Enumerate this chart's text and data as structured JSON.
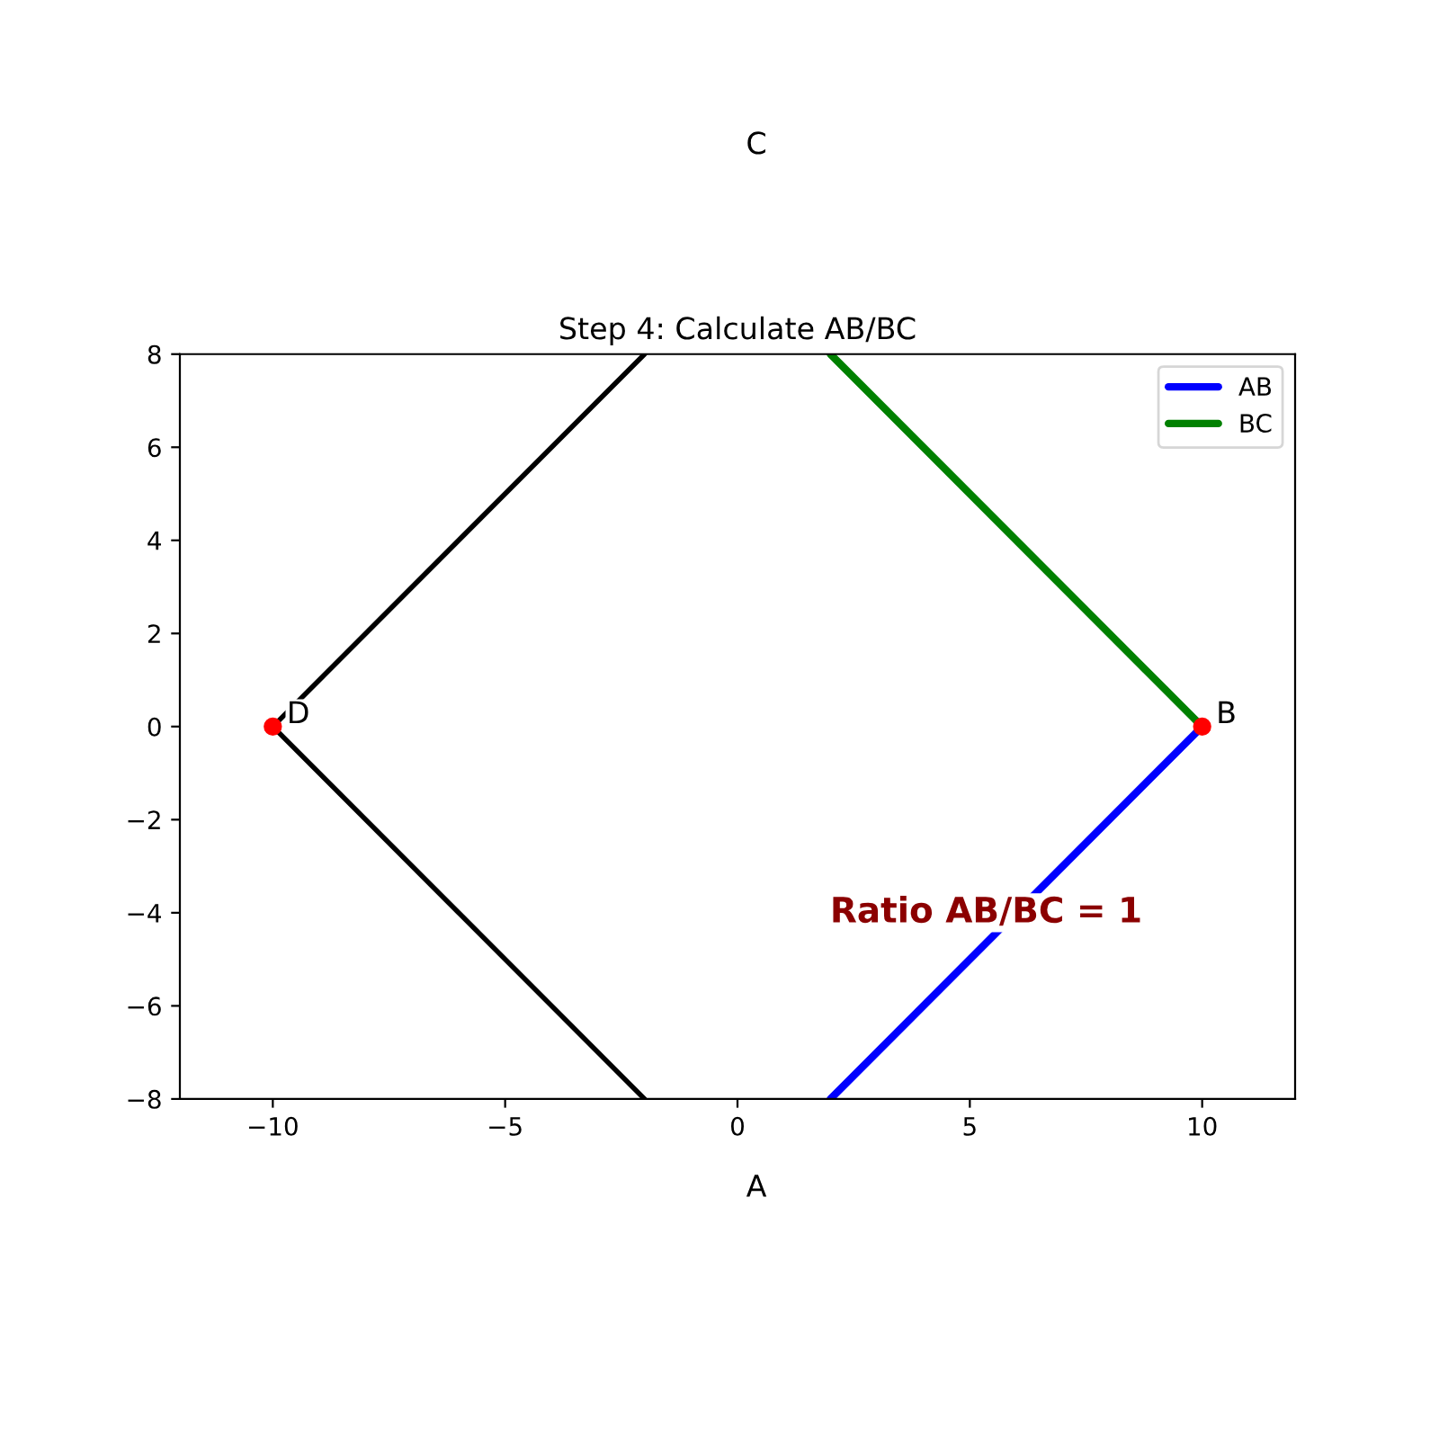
{
  "chart_data": {
    "type": "line",
    "title": "Step 4: Calculate AB/BC",
    "series": [
      {
        "name": "AB",
        "color": "#0000ff",
        "x": [
          2,
          10
        ],
        "values": [
          -8,
          0
        ]
      },
      {
        "name": "BC",
        "color": "#008000",
        "x": [
          10,
          2
        ],
        "values": [
          0,
          8
        ]
      },
      {
        "color": "#000000",
        "x": [
          -2,
          -10
        ],
        "values": [
          8,
          0
        ]
      },
      {
        "color": "#000000",
        "x": [
          -10,
          -2
        ],
        "values": [
          0,
          -8
        ]
      },
      {
        "type": "scatter",
        "color": "#ff0000",
        "x": [
          -10,
          10
        ],
        "values": [
          0,
          0
        ]
      }
    ],
    "annotations": [
      {
        "text": "D",
        "x": -10,
        "y": 0
      },
      {
        "text": "B",
        "x": 10,
        "y": 0
      },
      "C",
      "A",
      "Ratio AB/BC = 1"
    ],
    "xlim": [
      -12,
      12
    ],
    "ylim": [
      -8,
      8
    ],
    "xticks": [
      {
        "value": -10,
        "label": "−10"
      },
      {
        "value": -5,
        "label": "−5"
      },
      0,
      5,
      10
    ],
    "yticks": [
      {
        "value": -8,
        "label": "−8"
      },
      {
        "value": -6,
        "label": "−6"
      },
      {
        "value": -4,
        "label": "−4"
      },
      {
        "value": -2,
        "label": "−2"
      },
      0,
      2,
      4,
      6,
      8
    ],
    "legend": "top right",
    "grid": false
  }
}
